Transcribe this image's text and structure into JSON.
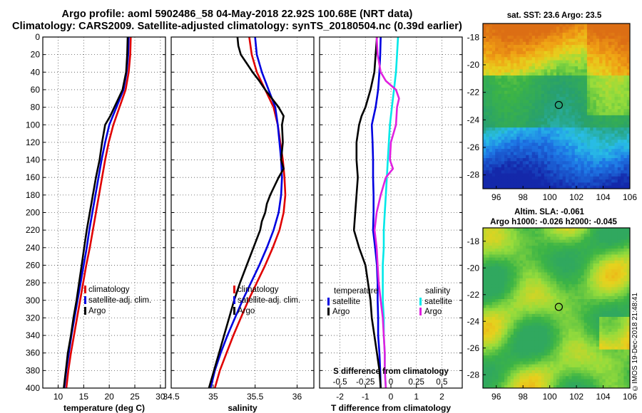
{
  "header": {
    "title_line1": "Argo profile: aoml 5902486_58 04-May-2018 22.92S 100.68E (NRT data)",
    "title_line2": "Climatology: CARS2009. Satellite-adjusted climatology: synTS_20180504.nc (0.39d earlier)"
  },
  "stamp": "©IMOS 19-Dec-2018 21:48:41",
  "colors": {
    "climatology": "#e00000",
    "satellite": "#0000e0",
    "argo": "#000000",
    "salinity_satellite": "#00e8e8",
    "salinity_argo": "#e020e0"
  },
  "chart_data": [
    {
      "type": "line",
      "id": "temperature",
      "xlabel": "temperature (deg C)",
      "ylabel": "",
      "xlim": [
        7,
        31
      ],
      "ylim": [
        400,
        0
      ],
      "xticks": [
        10,
        15,
        20,
        25,
        30
      ],
      "yticks": [
        0,
        20,
        40,
        60,
        80,
        100,
        120,
        140,
        160,
        180,
        200,
        220,
        240,
        260,
        280,
        300,
        320,
        340,
        360,
        380,
        400
      ],
      "legend": [
        "climatology",
        "satellite-adj. clim.",
        "Argo"
      ],
      "legend_position": "lower-center",
      "grid": true,
      "series": [
        {
          "name": "climatology",
          "color": "#e00000",
          "depth": [
            0,
            20,
            40,
            60,
            80,
            100,
            120,
            140,
            160,
            180,
            200,
            220,
            240,
            260,
            280,
            300,
            320,
            340,
            360,
            380,
            400
          ],
          "values": [
            24.2,
            24.1,
            23.8,
            23.2,
            22.0,
            20.8,
            19.9,
            19.2,
            18.6,
            18.0,
            17.4,
            16.8,
            16.2,
            15.5,
            14.9,
            14.3,
            13.7,
            13.1,
            12.5,
            12.0,
            11.6
          ]
        },
        {
          "name": "satellite-adj. clim.",
          "color": "#0000e0",
          "depth": [
            0,
            20,
            40,
            60,
            80,
            100,
            120,
            140,
            160,
            180,
            200,
            220,
            240,
            260,
            280,
            300,
            320,
            340,
            360,
            380,
            400
          ],
          "values": [
            23.8,
            23.7,
            23.4,
            22.8,
            21.4,
            20.0,
            19.2,
            18.5,
            17.9,
            17.3,
            16.7,
            16.1,
            15.6,
            15.0,
            14.4,
            13.8,
            13.2,
            12.6,
            12.1,
            11.6,
            11.2
          ]
        },
        {
          "name": "Argo",
          "color": "#000000",
          "depth": [
            0,
            20,
            40,
            60,
            70,
            80,
            90,
            100,
            120,
            140,
            160,
            180,
            200,
            220,
            240,
            260,
            280,
            300,
            320,
            340,
            360,
            380,
            400
          ],
          "values": [
            23.6,
            23.5,
            23.3,
            22.6,
            21.8,
            21.0,
            20.2,
            19.2,
            18.6,
            18.1,
            17.4,
            16.8,
            16.2,
            15.6,
            15.1,
            14.6,
            14.1,
            13.6,
            13.0,
            12.5,
            11.9,
            11.5,
            11.1
          ]
        }
      ]
    },
    {
      "type": "line",
      "id": "salinity",
      "xlabel": "salinity",
      "ylabel": "",
      "xlim": [
        34.5,
        36.2
      ],
      "ylim": [
        400,
        0
      ],
      "xticks": [
        34.5,
        35,
        35.5,
        36
      ],
      "xticklabels": [
        "34.5",
        "35",
        "35.5",
        "36"
      ],
      "legend": [
        "climatology",
        "satellite-adj. clim.",
        "Argo"
      ],
      "legend_position": "lower-center",
      "grid": true,
      "series": [
        {
          "name": "climatology",
          "color": "#e00000",
          "depth": [
            0,
            20,
            40,
            60,
            80,
            100,
            120,
            140,
            160,
            180,
            200,
            220,
            240,
            260,
            280,
            300,
            320,
            340,
            360,
            380,
            400
          ],
          "values": [
            35.43,
            35.46,
            35.52,
            35.62,
            35.72,
            35.77,
            35.8,
            35.83,
            35.85,
            35.86,
            35.84,
            35.79,
            35.71,
            35.62,
            35.52,
            35.42,
            35.33,
            35.24,
            35.16,
            35.08,
            35.02
          ]
        },
        {
          "name": "satellite-adj. clim.",
          "color": "#0000e0",
          "depth": [
            0,
            20,
            40,
            60,
            80,
            100,
            120,
            140,
            160,
            180,
            200,
            220,
            240,
            260,
            280,
            300,
            320,
            340,
            360,
            380,
            400
          ],
          "values": [
            35.5,
            35.52,
            35.58,
            35.66,
            35.74,
            35.77,
            35.79,
            35.81,
            35.82,
            35.81,
            35.78,
            35.72,
            35.64,
            35.55,
            35.45,
            35.35,
            35.26,
            35.17,
            35.09,
            35.02,
            34.97
          ]
        },
        {
          "name": "Argo",
          "color": "#000000",
          "depth": [
            0,
            10,
            20,
            30,
            40,
            50,
            60,
            70,
            80,
            90,
            100,
            120,
            140,
            150,
            160,
            170,
            180,
            190,
            200,
            210,
            220,
            240,
            260,
            280,
            300,
            320,
            340,
            360,
            380,
            400
          ],
          "values": [
            35.29,
            35.3,
            35.33,
            35.4,
            35.47,
            35.55,
            35.62,
            35.7,
            35.78,
            35.84,
            35.82,
            35.83,
            35.81,
            35.84,
            35.78,
            35.73,
            35.68,
            35.64,
            35.62,
            35.58,
            35.56,
            35.48,
            35.4,
            35.32,
            35.25,
            35.19,
            35.13,
            35.07,
            35.01,
            34.95
          ]
        }
      ]
    },
    {
      "type": "line",
      "id": "difference",
      "xlabel": "T difference from climatology",
      "xlabel_top": "S difference from climatology",
      "xlim": [
        -2.8,
        2.8
      ],
      "ylim": [
        400,
        0
      ],
      "xticks": [
        -2,
        -1,
        0,
        1,
        2
      ],
      "xticklabels": [
        "-2",
        "-1",
        "0",
        "1",
        "2"
      ],
      "xticks_top": [
        -0.5,
        -0.25,
        0,
        0.25,
        0.5
      ],
      "xticklabels_top": [
        "-0.5",
        "-0.25",
        "0",
        "0.25",
        "0.5"
      ],
      "legend_temperature_title": "temperature",
      "legend_salinity_title": "salinity",
      "legend_temperature": [
        "satellite",
        "Argo"
      ],
      "legend_salinity": [
        "satellite",
        "Argo"
      ],
      "grid": true,
      "series": [
        {
          "name": "T satellite",
          "color": "#0000e0",
          "depth": [
            0,
            20,
            40,
            60,
            80,
            100,
            120,
            140,
            160,
            180,
            200,
            220,
            240,
            260,
            280,
            300,
            320,
            340,
            360,
            380,
            400
          ],
          "values": [
            -0.4,
            -0.42,
            -0.45,
            -0.5,
            -0.6,
            -0.75,
            -0.72,
            -0.7,
            -0.7,
            -0.68,
            -0.68,
            -0.7,
            -0.62,
            -0.55,
            -0.52,
            -0.52,
            -0.5,
            -0.5,
            -0.45,
            -0.42,
            -0.4
          ]
        },
        {
          "name": "T Argo",
          "color": "#000000",
          "depth": [
            0,
            20,
            40,
            60,
            80,
            90,
            100,
            110,
            120,
            140,
            160,
            180,
            200,
            220,
            240,
            260,
            280,
            300,
            320,
            340,
            360,
            380,
            400
          ],
          "values": [
            -0.55,
            -0.6,
            -0.65,
            -0.8,
            -1.0,
            -1.15,
            -1.25,
            -1.3,
            -1.35,
            -1.35,
            -1.3,
            -1.35,
            -1.4,
            -1.45,
            -1.25,
            -1.0,
            -0.9,
            -0.8,
            -0.75,
            -0.65,
            -0.55,
            -0.45,
            -0.4
          ]
        },
        {
          "name": "S satellite",
          "color": "#00e8e8",
          "depth": [
            0,
            20,
            40,
            60,
            80,
            100,
            120,
            140,
            160,
            180,
            200,
            220,
            240,
            260,
            280,
            300,
            320,
            340,
            360,
            380,
            400
          ],
          "values": [
            0.07,
            0.06,
            0.05,
            0.03,
            0.01,
            -0.01,
            -0.02,
            -0.03,
            -0.04,
            -0.05,
            -0.06,
            -0.07,
            -0.07,
            -0.08,
            -0.08,
            -0.08,
            -0.07,
            -0.07,
            -0.06,
            -0.06,
            -0.05
          ]
        },
        {
          "name": "S Argo",
          "color": "#e020e0",
          "depth": [
            0,
            20,
            40,
            50,
            60,
            70,
            80,
            100,
            120,
            140,
            150,
            160,
            180,
            200,
            220,
            240,
            260,
            280,
            300,
            320,
            340,
            360,
            380,
            400
          ],
          "values": [
            -0.14,
            -0.13,
            -0.1,
            -0.05,
            0.05,
            0.08,
            0.06,
            0.05,
            0.0,
            -0.01,
            0.02,
            -0.05,
            -0.1,
            -0.14,
            -0.16,
            -0.14,
            -0.13,
            -0.12,
            -0.1,
            -0.08,
            -0.07,
            -0.06,
            -0.06,
            -0.05
          ]
        }
      ]
    },
    {
      "type": "heatmap",
      "id": "sst_map",
      "title": "sat. SST: 23.6 Argo: 23.5",
      "sat_sst": 23.6,
      "argo_sst": 23.5,
      "xlim": [
        95,
        106
      ],
      "ylim": [
        -29,
        -17
      ],
      "xticks": [
        96,
        98,
        100,
        102,
        104,
        106
      ],
      "yticks": [
        -18,
        -20,
        -22,
        -24,
        -26,
        -28
      ],
      "profile_location": {
        "lon": 100.68,
        "lat": -22.92
      }
    },
    {
      "type": "heatmap",
      "id": "sla_map",
      "title_line1": "Altim. SLA: -0.061",
      "title_line2": "Argo h1000: -0.026 h2000: -0.045",
      "sla": -0.061,
      "h1000": -0.026,
      "h2000": -0.045,
      "xlim": [
        95,
        106
      ],
      "ylim": [
        -29,
        -17
      ],
      "xticks": [
        96,
        98,
        100,
        102,
        104,
        106
      ],
      "yticks": [
        -18,
        -20,
        -22,
        -24,
        -26,
        -28
      ],
      "profile_location": {
        "lon": 100.68,
        "lat": -22.92
      }
    }
  ]
}
